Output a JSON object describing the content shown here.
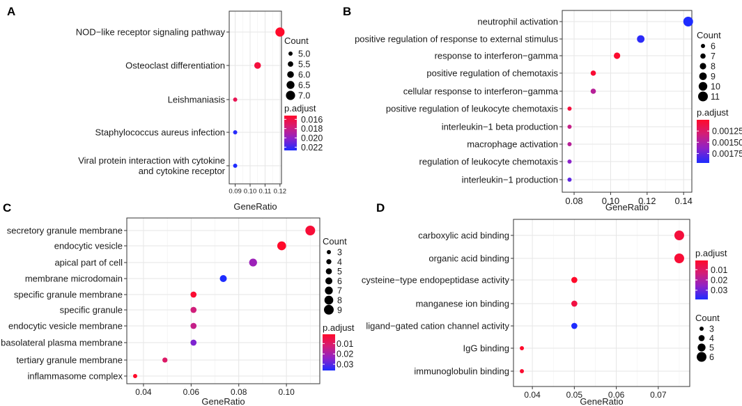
{
  "chart_data": [
    {
      "panel_label": "A",
      "type": "scatter",
      "xlabel": "GeneRatio",
      "xlim": [
        0.086,
        0.121
      ],
      "xticks": [
        0.09,
        0.1,
        0.11,
        0.12
      ],
      "xtick_labels": [
        "0.09",
        "0.10",
        "0.11",
        "0.12"
      ],
      "category_lines": [
        [
          "NOD−like receptor signaling pathway"
        ],
        [
          "Osteoclast differentiation"
        ],
        [
          "Leishmaniasis"
        ],
        [
          "Staphylococcus aureus infection"
        ],
        [
          "Viral protein interaction with cytokine",
          "and cytokine receptor"
        ]
      ],
      "points": [
        {
          "x": 0.12,
          "count": 7,
          "p_adjust": 0.0152
        },
        {
          "x": 0.105,
          "count": 6,
          "p_adjust": 0.0158
        },
        {
          "x": 0.09,
          "count": 5,
          "p_adjust": 0.0165
        },
        {
          "x": 0.09,
          "count": 5,
          "p_adjust": 0.0225
        },
        {
          "x": 0.09,
          "count": 5,
          "p_adjust": 0.0227
        }
      ],
      "count_legend": {
        "title": "Count",
        "values": [
          5.0,
          5.5,
          6.0,
          6.5,
          7.0
        ],
        "labels": [
          "5.0",
          "5.5",
          "6.0",
          "6.5",
          "7.0"
        ],
        "range": [
          5,
          7
        ]
      },
      "color_legend": {
        "title": "p.adjust",
        "ticks": [
          0.016,
          0.018,
          0.02,
          0.022
        ],
        "labels": [
          "0.016",
          "0.018",
          "0.020",
          "0.022"
        ],
        "range": [
          0.0152,
          0.0227
        ]
      }
    },
    {
      "panel_label": "B",
      "type": "scatter",
      "xlabel": "GeneRatio",
      "xlim": [
        0.0735,
        0.1445
      ],
      "xticks": [
        0.08,
        0.1,
        0.12,
        0.14
      ],
      "xtick_labels": [
        "0.08",
        "0.10",
        "0.12",
        "0.14"
      ],
      "category_lines": [
        [
          "neutrophil activation"
        ],
        [
          "positive regulation of response to external stimulus"
        ],
        [
          "response to interferon−gamma"
        ],
        [
          "positive regulation of chemotaxis"
        ],
        [
          "cellular response to interferon−gamma"
        ],
        [
          "positive regulation of leukocyte chemotaxis"
        ],
        [
          "interleukin−1 beta production"
        ],
        [
          "macrophage activation"
        ],
        [
          "regulation of leukocyte chemotaxis"
        ],
        [
          "interleukin−1 production"
        ]
      ],
      "points": [
        {
          "x": 0.1425,
          "count": 11,
          "p_adjust": 0.00196
        },
        {
          "x": 0.1165,
          "count": 9,
          "p_adjust": 0.00192
        },
        {
          "x": 0.1035,
          "count": 8,
          "p_adjust": 0.00102
        },
        {
          "x": 0.0905,
          "count": 7,
          "p_adjust": 0.00104
        },
        {
          "x": 0.0905,
          "count": 7,
          "p_adjust": 0.00145
        },
        {
          "x": 0.0775,
          "count": 6,
          "p_adjust": 0.00108
        },
        {
          "x": 0.0775,
          "count": 6,
          "p_adjust": 0.00138
        },
        {
          "x": 0.0775,
          "count": 6,
          "p_adjust": 0.00145
        },
        {
          "x": 0.0775,
          "count": 6,
          "p_adjust": 0.00165
        },
        {
          "x": 0.0775,
          "count": 6,
          "p_adjust": 0.00178
        }
      ],
      "count_legend": {
        "title": "Count",
        "values": [
          6,
          7,
          8,
          9,
          10,
          11
        ],
        "labels": [
          "6",
          "7",
          "8",
          "9",
          "10",
          "11"
        ],
        "range": [
          6,
          11
        ]
      },
      "color_legend": {
        "title": "p.adjust",
        "ticks": [
          0.00125,
          0.0015,
          0.00175
        ],
        "labels": [
          "0.00125",
          "0.00150",
          "0.00175"
        ],
        "range": [
          0.001,
          0.00196
        ]
      }
    },
    {
      "panel_label": "C",
      "type": "scatter",
      "xlabel": "GeneRatio",
      "xlim": [
        0.033,
        0.114
      ],
      "xticks": [
        0.04,
        0.06,
        0.08,
        0.1
      ],
      "xtick_labels": [
        "0.04",
        "0.06",
        "0.08",
        "0.10"
      ],
      "category_lines": [
        [
          "secretory granule membrane"
        ],
        [
          "endocytic vesicle"
        ],
        [
          "apical part of cell"
        ],
        [
          "membrane microdomain"
        ],
        [
          "specific granule membrane"
        ],
        [
          "specific granule"
        ],
        [
          "endocytic vesicle membrane"
        ],
        [
          "basolateral plasma membrane"
        ],
        [
          "tertiary granule membrane"
        ],
        [
          "inflammasome complex"
        ]
      ],
      "points": [
        {
          "x": 0.11,
          "count": 9,
          "p_adjust": 0.003
        },
        {
          "x": 0.098,
          "count": 8,
          "p_adjust": 0.001
        },
        {
          "x": 0.086,
          "count": 7,
          "p_adjust": 0.022
        },
        {
          "x": 0.0735,
          "count": 6,
          "p_adjust": 0.036
        },
        {
          "x": 0.061,
          "count": 5,
          "p_adjust": 0.002
        },
        {
          "x": 0.061,
          "count": 5,
          "p_adjust": 0.013
        },
        {
          "x": 0.061,
          "count": 5,
          "p_adjust": 0.015
        },
        {
          "x": 0.061,
          "count": 5,
          "p_adjust": 0.026
        },
        {
          "x": 0.049,
          "count": 4,
          "p_adjust": 0.01
        },
        {
          "x": 0.0365,
          "count": 3,
          "p_adjust": 0.001
        }
      ],
      "count_legend": {
        "title": "Count",
        "values": [
          3,
          4,
          5,
          6,
          7,
          8,
          9
        ],
        "labels": [
          "3",
          "4",
          "5",
          "6",
          "7",
          "8",
          "9"
        ],
        "range": [
          3,
          9
        ]
      },
      "color_legend": {
        "title": "p.adjust",
        "ticks": [
          0.01,
          0.02,
          0.03
        ],
        "labels": [
          "0.01",
          "0.02",
          "0.03"
        ],
        "range": [
          0.001,
          0.036
        ]
      }
    },
    {
      "panel_label": "D",
      "type": "scatter",
      "xlabel": "GeneRatio",
      "xlim": [
        0.0355,
        0.0775
      ],
      "xticks": [
        0.04,
        0.05,
        0.06,
        0.07
      ],
      "xtick_labels": [
        "0.04",
        "0.05",
        "0.06",
        "0.07"
      ],
      "category_lines": [
        [
          "carboxylic acid binding"
        ],
        [
          "organic acid binding"
        ],
        [
          "cysteine−type endopeptidase activity"
        ],
        [
          "manganese ion binding"
        ],
        [
          "ligand−gated cation channel activity"
        ],
        [
          "IgG binding"
        ],
        [
          "immunoglobulin binding"
        ]
      ],
      "points": [
        {
          "x": 0.075,
          "count": 6,
          "p_adjust": 0.004
        },
        {
          "x": 0.075,
          "count": 6,
          "p_adjust": 0.003
        },
        {
          "x": 0.05,
          "count": 4,
          "p_adjust": 0.001
        },
        {
          "x": 0.05,
          "count": 4,
          "p_adjust": 0.005
        },
        {
          "x": 0.05,
          "count": 4,
          "p_adjust": 0.039
        },
        {
          "x": 0.0375,
          "count": 3,
          "p_adjust": 0.001
        },
        {
          "x": 0.0375,
          "count": 3,
          "p_adjust": 0.002
        }
      ],
      "count_legend": {
        "title": "Count",
        "values": [
          3,
          4,
          5,
          6
        ],
        "labels": [
          "3",
          "4",
          "5",
          "6"
        ],
        "range": [
          3,
          6
        ]
      },
      "color_legend": {
        "title": "p.adjust",
        "ticks": [
          0.01,
          0.02,
          0.03
        ],
        "labels": [
          "0.01",
          "0.02",
          "0.03"
        ],
        "range": [
          0.001,
          0.039
        ]
      }
    }
  ]
}
